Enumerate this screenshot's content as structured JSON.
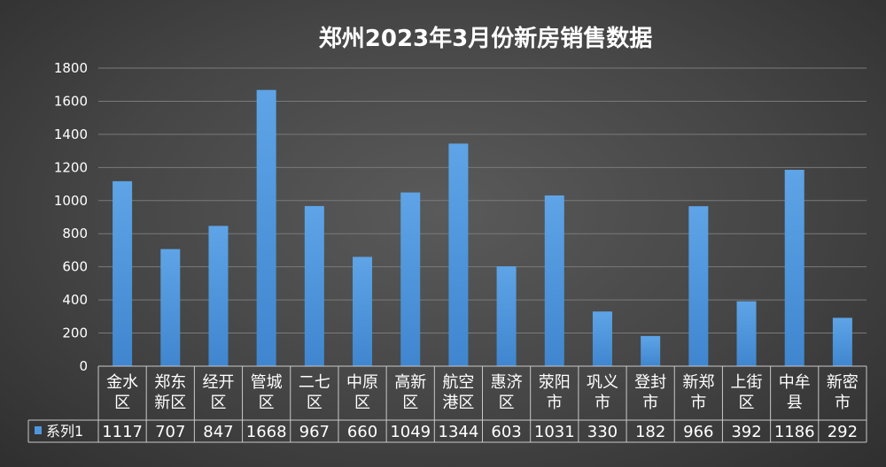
{
  "chart_data": {
    "type": "bar",
    "title": "郑州2023年3月份新房销售数据",
    "categories": [
      [
        "金水",
        "区"
      ],
      [
        "郑东",
        "新区"
      ],
      [
        "经开",
        "区"
      ],
      [
        "管城",
        "区"
      ],
      [
        "二七",
        "区"
      ],
      [
        "中原",
        "区"
      ],
      [
        "高新",
        "区"
      ],
      [
        "航空",
        "港区"
      ],
      [
        "惠济",
        "区"
      ],
      [
        "荥阳",
        "市"
      ],
      [
        "巩义",
        "市"
      ],
      [
        "登封",
        "市"
      ],
      [
        "新郑",
        "市"
      ],
      [
        "上街",
        "区"
      ],
      [
        "中牟",
        "县"
      ],
      [
        "新密",
        "市"
      ]
    ],
    "series": [
      {
        "name": "系列1",
        "color": "#4f97dc",
        "values": [
          1117,
          707,
          847,
          1668,
          967,
          660,
          1049,
          1344,
          603,
          1031,
          330,
          182,
          966,
          392,
          1186,
          292
        ]
      }
    ],
    "ylim": [
      0,
      1800
    ],
    "yticks": [
      0,
      200,
      400,
      600,
      800,
      1000,
      1200,
      1400,
      1600,
      1800
    ],
    "grid": true,
    "data_table": true
  }
}
